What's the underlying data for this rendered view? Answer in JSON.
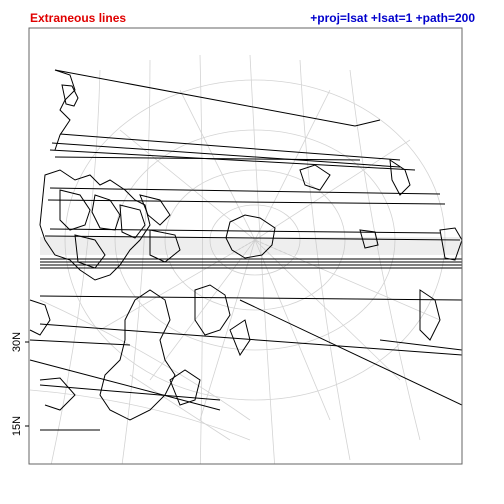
{
  "title": {
    "left": "Extraneous lines",
    "left_color": "#e00000",
    "right": "+proj=lsat +lsat=1 +path=200",
    "right_color": "#0000cc"
  },
  "axis": {
    "y_ticks": [
      {
        "label": "30N"
      },
      {
        "label": "15N"
      }
    ]
  },
  "map": {
    "graticule_color": "#d3d3d3",
    "coastline_color": "#000000",
    "frame_color": "#666666",
    "artifact_description": "horizontal wrap-around line segments"
  }
}
